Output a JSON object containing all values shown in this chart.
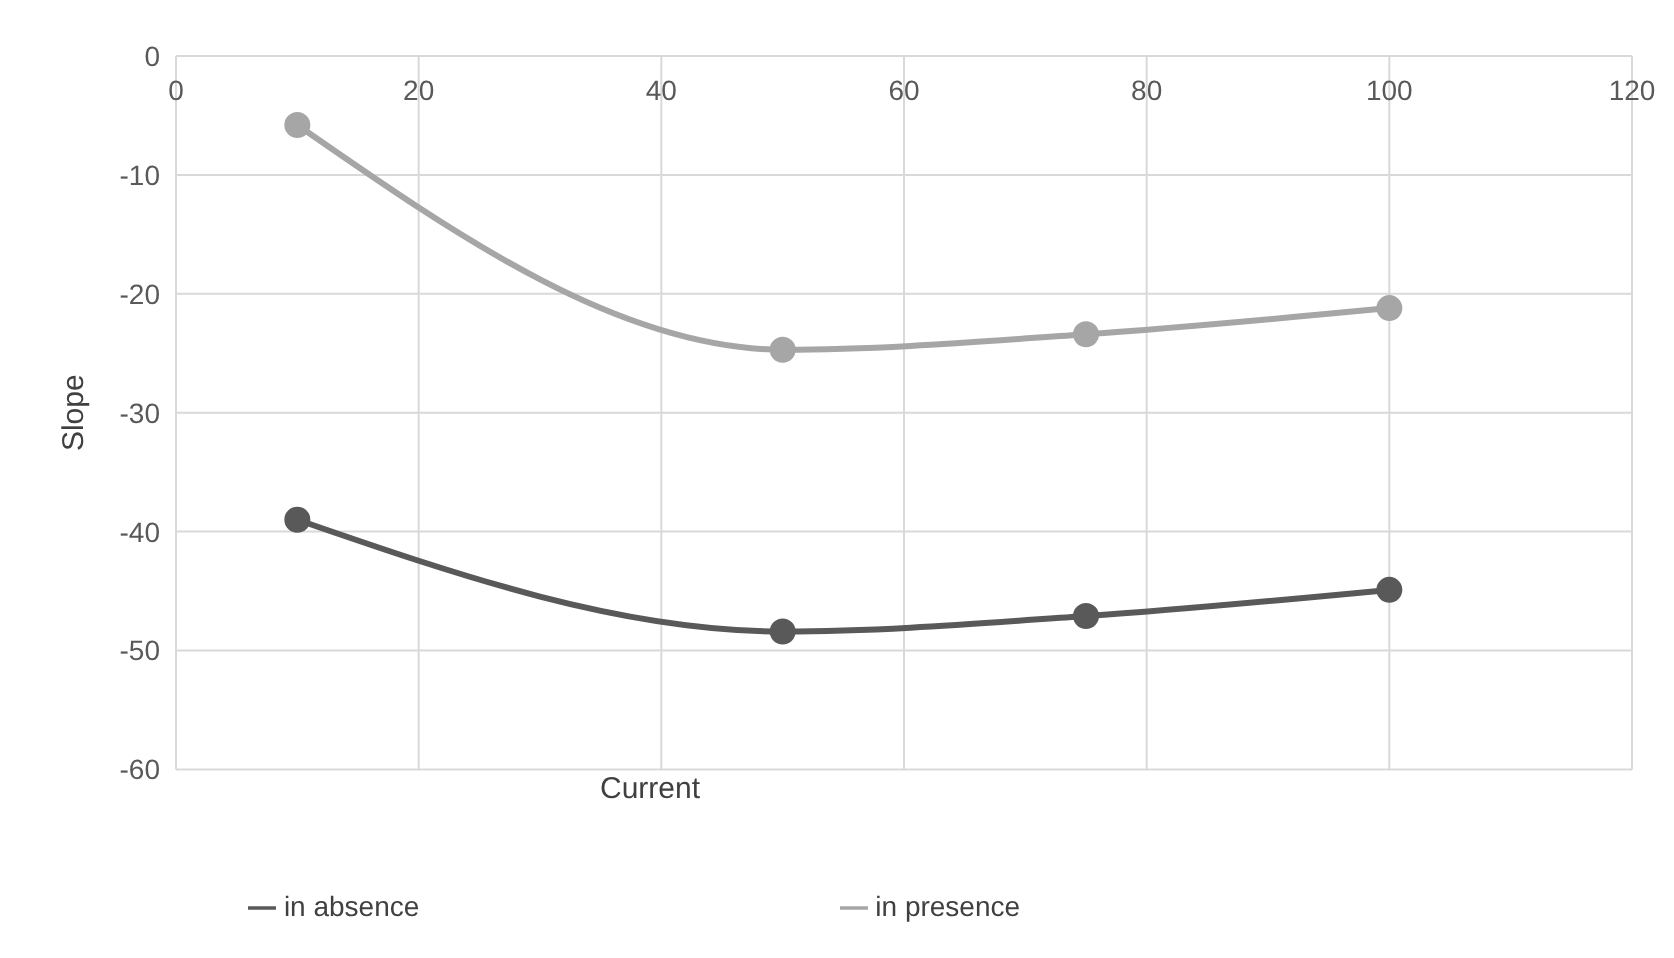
{
  "chart_data": {
    "type": "line",
    "xlabel": "Current",
    "ylabel": "Slope",
    "xlim": [
      0,
      120
    ],
    "xticks": [
      0,
      20,
      40,
      60,
      80,
      100,
      120
    ],
    "ylim": [
      -60,
      0
    ],
    "yticks": [
      -60,
      -50,
      -40,
      -30,
      -20,
      -10,
      0
    ],
    "x": [
      10,
      50,
      75,
      100
    ],
    "series": [
      {
        "name": "in absence",
        "color": "#595959",
        "values": [
          -39,
          -48.4,
          -47.1,
          -44.9
        ]
      },
      {
        "name": "in presence",
        "color": "#a6a6a6",
        "values": [
          -5.8,
          -24.7,
          -23.4,
          -21.2
        ]
      }
    ],
    "grid": true,
    "legend": "bottom",
    "marker": "circle",
    "line_style": "solid"
  }
}
